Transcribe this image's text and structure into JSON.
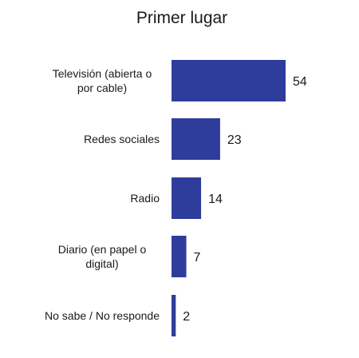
{
  "chart_data": {
    "type": "bar",
    "orientation": "horizontal",
    "title": "Primer lugar",
    "categories": [
      "Televisión (abierta o por cable)",
      "Redes sociales",
      "Radio",
      "Diario (en papel o digital)",
      "No sabe / No responde"
    ],
    "category_lines": [
      [
        "Televisión (abierta o",
        "por cable)"
      ],
      [
        "Redes sociales"
      ],
      [
        "Radio"
      ],
      [
        "Diario (en papel o",
        "digital)"
      ],
      [
        "No sabe / No responde"
      ]
    ],
    "values": [
      54,
      23,
      14,
      7,
      2
    ],
    "value_labels": [
      "54",
      "23",
      "14",
      "7",
      "2"
    ],
    "xlim": [
      0,
      54
    ],
    "grid": false,
    "legend": "none",
    "bar_color": "#2E3D9B"
  }
}
